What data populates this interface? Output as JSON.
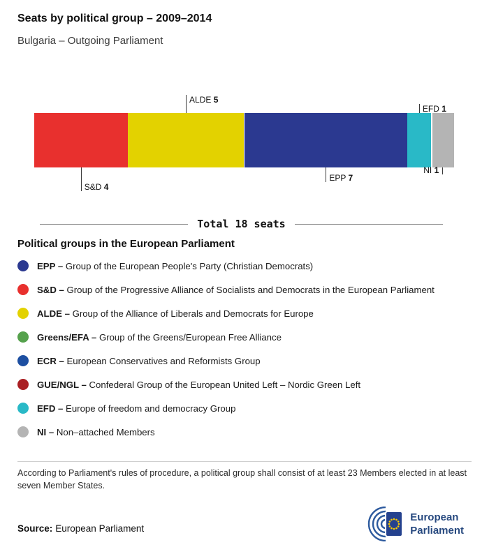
{
  "header": {
    "title": "Seats by political group – 2009–2014",
    "subtitle": "Bulgaria – Outgoing Parliament"
  },
  "chart_data": {
    "type": "bar",
    "orientation": "horizontal-stacked",
    "title": "Seats by political group – 2009–2014",
    "subtitle": "Bulgaria – Outgoing Parliament",
    "total_seats": 18,
    "total_label": "Total 18 seats",
    "segments": [
      {
        "group": "S&D",
        "seats": 4,
        "color": "#e8302e",
        "callout": "below"
      },
      {
        "group": "ALDE",
        "seats": 5,
        "color": "#e3d200",
        "callout": "above"
      },
      {
        "group": "EPP",
        "seats": 7,
        "color": "#2b3990",
        "callout": "below"
      },
      {
        "group": "EFD",
        "seats": 1,
        "color": "#29b9c7",
        "callout": "above"
      },
      {
        "group": "NI",
        "seats": 1,
        "color": "#b4b4b4",
        "callout": "below"
      }
    ]
  },
  "legend": {
    "heading": "Political groups in the European Parliament",
    "items": [
      {
        "abbr": "EPP –",
        "name": "Group of the European People's Party (Christian Democrats)",
        "color": "#2b3990"
      },
      {
        "abbr": "S&D –",
        "name": "Group of the Progressive Alliance of Socialists and Democrats in the European Parliament",
        "color": "#e8302e"
      },
      {
        "abbr": "ALDE –",
        "name": "Group of the Alliance of Liberals and Democrats for Europe",
        "color": "#e3d200"
      },
      {
        "abbr": "Greens/EFA –",
        "name": "Group of the Greens/European Free Alliance",
        "color": "#55a14c"
      },
      {
        "abbr": "ECR –",
        "name": "European Conservatives and Reformists Group",
        "color": "#1d4fa1"
      },
      {
        "abbr": "GUE/NGL –",
        "name": "Confederal Group of the European United Left – Nordic Green Left",
        "color": "#aa1f23"
      },
      {
        "abbr": "EFD –",
        "name": "Europe of freedom and democracy Group",
        "color": "#29b9c7"
      },
      {
        "abbr": "NI –",
        "name": "Non–attached Members",
        "color": "#b4b4b4"
      }
    ]
  },
  "footer": {
    "note": "According to Parliament's rules of procedure, a political group shall consist of at least 23 Members elected in at least seven Member States.",
    "source_label": "Source:",
    "source_text": "European Parliament",
    "logo_line1": "European",
    "logo_line2": "Parliament"
  }
}
